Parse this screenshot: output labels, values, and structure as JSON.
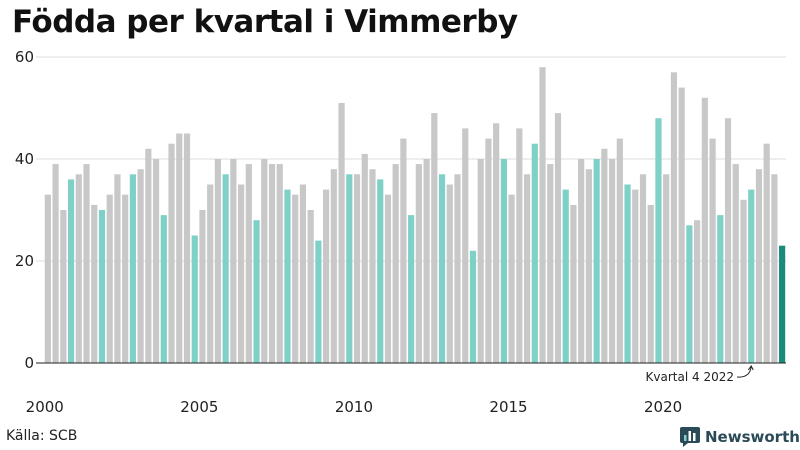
{
  "title": "Födda per kvartal i Vimmerby",
  "source": "Källa: SCB",
  "brand": {
    "name": "Newsworthy",
    "icon": "bar-chart-logo-icon",
    "color": "#2b4a57"
  },
  "chart_data": {
    "type": "bar",
    "title": "Födda per kvartal i Vimmerby",
    "xlabel": "",
    "ylabel": "",
    "ylim": [
      0,
      60
    ],
    "yticks": [
      0,
      20,
      40,
      60
    ],
    "xticks": [
      {
        "label": "2000",
        "index": 0
      },
      {
        "label": "2005",
        "index": 20
      },
      {
        "label": "2010",
        "index": 40
      },
      {
        "label": "2015",
        "index": 60
      },
      {
        "label": "2020",
        "index": 80
      }
    ],
    "grid": true,
    "colors": {
      "default": "#c8c8c8",
      "q4": "#7fd1c7",
      "latest": "#1a8a7b",
      "grid": "#dddddd",
      "axis": "#222222"
    },
    "annotation": {
      "text": "Kvartal 4 2022",
      "target_index": 91
    },
    "values": [
      33,
      39,
      30,
      36,
      37,
      39,
      31,
      30,
      33,
      37,
      33,
      37,
      38,
      42,
      40,
      29,
      43,
      45,
      45,
      25,
      30,
      35,
      40,
      37,
      40,
      35,
      39,
      28,
      40,
      39,
      39,
      34,
      33,
      35,
      30,
      24,
      34,
      38,
      51,
      37,
      37,
      41,
      38,
      36,
      33,
      39,
      44,
      29,
      39,
      40,
      49,
      37,
      35,
      37,
      46,
      22,
      40,
      44,
      47,
      40,
      33,
      46,
      37,
      43,
      58,
      39,
      49,
      34,
      31,
      40,
      38,
      40,
      42,
      40,
      44,
      35,
      34,
      37,
      31,
      48,
      37,
      57,
      54,
      27,
      28,
      52,
      44,
      29,
      48,
      39,
      32,
      34,
      38,
      43,
      37,
      23
    ],
    "highlight": [
      3,
      7,
      11,
      15,
      19,
      23,
      27,
      31,
      35,
      39,
      43,
      47,
      51,
      55,
      59,
      63,
      67,
      71,
      75,
      79,
      83,
      87,
      91
    ],
    "latest_index": 95
  }
}
